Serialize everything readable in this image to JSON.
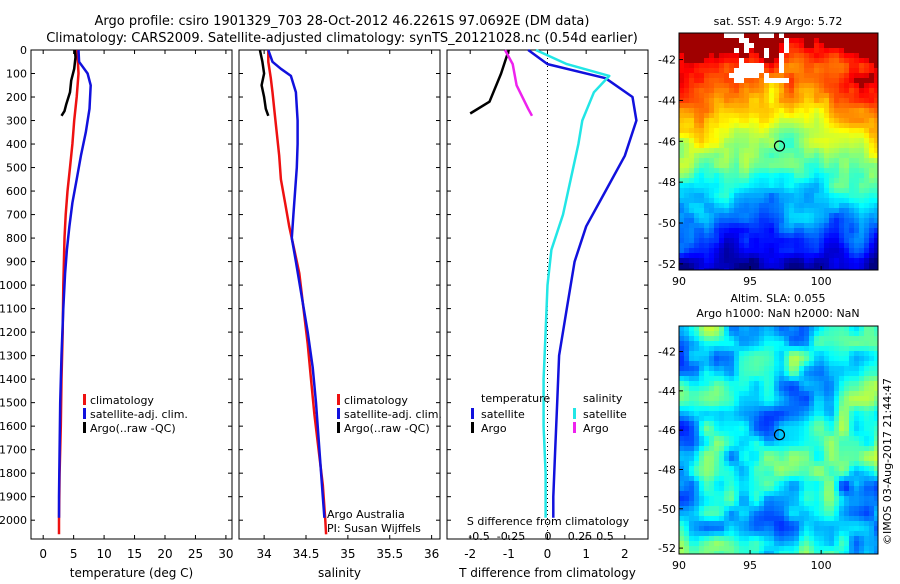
{
  "header": {
    "line1": "Argo profile: csiro 1901329_703 28-Oct-2012 46.2261S 97.0692E (DM data)",
    "line2": "Climatology: CARS2009. Satellite-adjusted climatology: synTS_20121028.nc (0.54d earlier)"
  },
  "colors": {
    "climatology": "#ee1111",
    "satellite": "#1111dd",
    "argo": "#000000",
    "salinity_satellite": "#22e6e6",
    "salinity_argo": "#ee22ee"
  },
  "chart_data": [
    {
      "id": "temperature",
      "type": "line",
      "xlabel": "temperature (deg C)",
      "xlim": [
        -2,
        31
      ],
      "xticks": [
        0,
        5,
        10,
        15,
        20,
        25,
        30
      ],
      "ylim": [
        2080,
        0
      ],
      "yticks": [
        0,
        100,
        200,
        300,
        400,
        500,
        600,
        700,
        800,
        900,
        1000,
        1100,
        1200,
        1300,
        1400,
        1500,
        1600,
        1700,
        1800,
        1900,
        2000
      ],
      "legend": [
        "climatology",
        "satellite-adj. clim.",
        "Argo(..raw -QC)"
      ],
      "series": [
        {
          "name": "climatology",
          "color_key": "climatology",
          "points": [
            [
              5.6,
              0
            ],
            [
              5.7,
              50
            ],
            [
              5.8,
              100
            ],
            [
              5.5,
              200
            ],
            [
              5.1,
              300
            ],
            [
              4.8,
              400
            ],
            [
              4.4,
              500
            ],
            [
              4.0,
              600
            ],
            [
              3.7,
              700
            ],
            [
              3.5,
              800
            ],
            [
              3.4,
              900
            ],
            [
              3.3,
              1000
            ],
            [
              3.2,
              1200
            ],
            [
              3.0,
              1400
            ],
            [
              2.9,
              1600
            ],
            [
              2.7,
              1800
            ],
            [
              2.6,
              2000
            ],
            [
              2.6,
              2060
            ]
          ]
        },
        {
          "name": "satellite-adj. clim.",
          "color_key": "satellite",
          "points": [
            [
              5.8,
              0
            ],
            [
              5.9,
              50
            ],
            [
              7.3,
              100
            ],
            [
              7.8,
              150
            ],
            [
              7.6,
              250
            ],
            [
              7.0,
              350
            ],
            [
              6.2,
              450
            ],
            [
              5.5,
              550
            ],
            [
              4.8,
              650
            ],
            [
              4.3,
              750
            ],
            [
              3.9,
              850
            ],
            [
              3.6,
              950
            ],
            [
              3.3,
              1100
            ],
            [
              3.0,
              1300
            ],
            [
              2.8,
              1500
            ],
            [
              2.7,
              1700
            ],
            [
              2.6,
              1900
            ],
            [
              2.6,
              1990
            ]
          ]
        },
        {
          "name": "Argo(..raw -QC)",
          "color_key": "argo",
          "points": [
            [
              5.2,
              0
            ],
            [
              5.3,
              30
            ],
            [
              5.1,
              80
            ],
            [
              4.6,
              130
            ],
            [
              4.4,
              180
            ],
            [
              3.8,
              230
            ],
            [
              3.5,
              260
            ],
            [
              3.0,
              280
            ]
          ]
        }
      ]
    },
    {
      "id": "salinity",
      "type": "line",
      "xlabel": "salinity",
      "xlim": [
        33.7,
        36.1
      ],
      "xticks": [
        34,
        34.5,
        35,
        35.5,
        36
      ],
      "ylim": [
        2080,
        0
      ],
      "legend": [
        "climatology",
        "satellite-adj. clim.",
        "Argo(..raw -QC)"
      ],
      "annotation": [
        "Argo Australia",
        "PI: Susan Wijffels"
      ],
      "series": [
        {
          "name": "climatology",
          "color_key": "climatology",
          "points": [
            [
              34.05,
              0
            ],
            [
              34.05,
              50
            ],
            [
              34.08,
              120
            ],
            [
              34.1,
              180
            ],
            [
              34.12,
              250
            ],
            [
              34.15,
              350
            ],
            [
              34.18,
              450
            ],
            [
              34.2,
              550
            ],
            [
              34.25,
              650
            ],
            [
              34.3,
              750
            ],
            [
              34.36,
              850
            ],
            [
              34.42,
              950
            ],
            [
              34.47,
              1100
            ],
            [
              34.52,
              1250
            ],
            [
              34.56,
              1400
            ],
            [
              34.6,
              1550
            ],
            [
              34.65,
              1700
            ],
            [
              34.7,
              1850
            ],
            [
              34.73,
              2000
            ],
            [
              34.74,
              2060
            ]
          ]
        },
        {
          "name": "satellite-adj. clim.",
          "color_key": "satellite",
          "points": [
            [
              34.05,
              0
            ],
            [
              34.1,
              50
            ],
            [
              34.2,
              80
            ],
            [
              34.32,
              110
            ],
            [
              34.38,
              180
            ],
            [
              34.4,
              300
            ],
            [
              34.4,
              400
            ],
            [
              34.39,
              500
            ],
            [
              34.37,
              600
            ],
            [
              34.35,
              700
            ],
            [
              34.33,
              800
            ],
            [
              34.38,
              900
            ],
            [
              34.45,
              1050
            ],
            [
              34.52,
              1200
            ],
            [
              34.58,
              1350
            ],
            [
              34.62,
              1500
            ],
            [
              34.66,
              1700
            ],
            [
              34.7,
              1900
            ],
            [
              34.72,
              1990
            ]
          ]
        },
        {
          "name": "Argo(..raw -QC)",
          "color_key": "argo",
          "points": [
            [
              33.95,
              0
            ],
            [
              33.98,
              50
            ],
            [
              34.0,
              100
            ],
            [
              33.97,
              150
            ],
            [
              34.0,
              200
            ],
            [
              34.02,
              250
            ],
            [
              34.05,
              280
            ]
          ]
        }
      ]
    },
    {
      "id": "difference",
      "type": "line",
      "xlabel": "T difference from climatology",
      "xlabel_top": "S difference from climatology",
      "xlim": [
        -2.6,
        2.6
      ],
      "xticks": [
        -2,
        -1,
        0,
        1,
        2
      ],
      "xticks_top": [
        "-0.5",
        "-0.25",
        "0",
        "0.25",
        "0.5"
      ],
      "ylim": [
        2080,
        0
      ],
      "legend_heads": [
        "temperature",
        "salinity"
      ],
      "legend": [
        "satellite",
        "Argo",
        "satellite",
        "Argo"
      ],
      "series": [
        {
          "name": "satellite",
          "group": "temperature",
          "color_key": "satellite",
          "points": [
            [
              -0.5,
              0
            ],
            [
              0,
              60
            ],
            [
              1.5,
              120
            ],
            [
              2.2,
              200
            ],
            [
              2.3,
              300
            ],
            [
              2.0,
              450
            ],
            [
              1.5,
              600
            ],
            [
              1.0,
              750
            ],
            [
              0.7,
              900
            ],
            [
              0.5,
              1100
            ],
            [
              0.3,
              1300
            ],
            [
              0.25,
              1500
            ],
            [
              0.2,
              1700
            ],
            [
              0.15,
              1900
            ],
            [
              0.15,
              1990
            ]
          ]
        },
        {
          "name": "Argo",
          "group": "temperature",
          "color_key": "argo",
          "points": [
            [
              -1.0,
              0
            ],
            [
              -1.2,
              100
            ],
            [
              -1.5,
              220
            ],
            [
              -2.0,
              270
            ]
          ]
        },
        {
          "name": "satellite",
          "group": "salinity",
          "color_key": "salinity_satellite",
          "points": [
            [
              -0.3,
              0
            ],
            [
              0.5,
              60
            ],
            [
              1.6,
              110
            ],
            [
              1.2,
              180
            ],
            [
              0.9,
              300
            ],
            [
              0.8,
              400
            ],
            [
              0.6,
              550
            ],
            [
              0.4,
              700
            ],
            [
              0.1,
              850
            ],
            [
              0.0,
              1000
            ],
            [
              -0.05,
              1200
            ],
            [
              -0.1,
              1400
            ],
            [
              -0.1,
              1600
            ],
            [
              -0.05,
              1800
            ],
            [
              -0.05,
              1990
            ]
          ]
        },
        {
          "name": "Argo",
          "group": "salinity",
          "color_key": "salinity_argo",
          "points": [
            [
              -1.1,
              0
            ],
            [
              -0.9,
              60
            ],
            [
              -0.8,
              150
            ],
            [
              -0.5,
              250
            ],
            [
              -0.4,
              280
            ]
          ]
        }
      ]
    },
    {
      "id": "sst-map",
      "type": "heatmap",
      "title": "sat. SST: 4.9  Argo: 5.72",
      "xlim": [
        90,
        104
      ],
      "ylim": [
        -52.3,
        -40.7
      ],
      "xticks": [
        90,
        95,
        100
      ],
      "yticks": [
        -42,
        -44,
        -46,
        -48,
        -50,
        -52
      ],
      "marker": [
        97.07,
        -46.23
      ]
    },
    {
      "id": "sla-map",
      "type": "heatmap",
      "title_lines": [
        "Altim. SLA: 0.055",
        "Argo h1000: NaN h2000: NaN"
      ],
      "xlim": [
        90,
        104
      ],
      "ylim": [
        -52.3,
        -40.7
      ],
      "xticks": [
        90,
        95,
        100
      ],
      "yticks": [
        -42,
        -44,
        -46,
        -48,
        -50,
        -52
      ],
      "marker": [
        97.07,
        -46.23
      ]
    }
  ],
  "footer": {
    "credit": "©IMOS 03-Aug-2017 21:44:47"
  }
}
